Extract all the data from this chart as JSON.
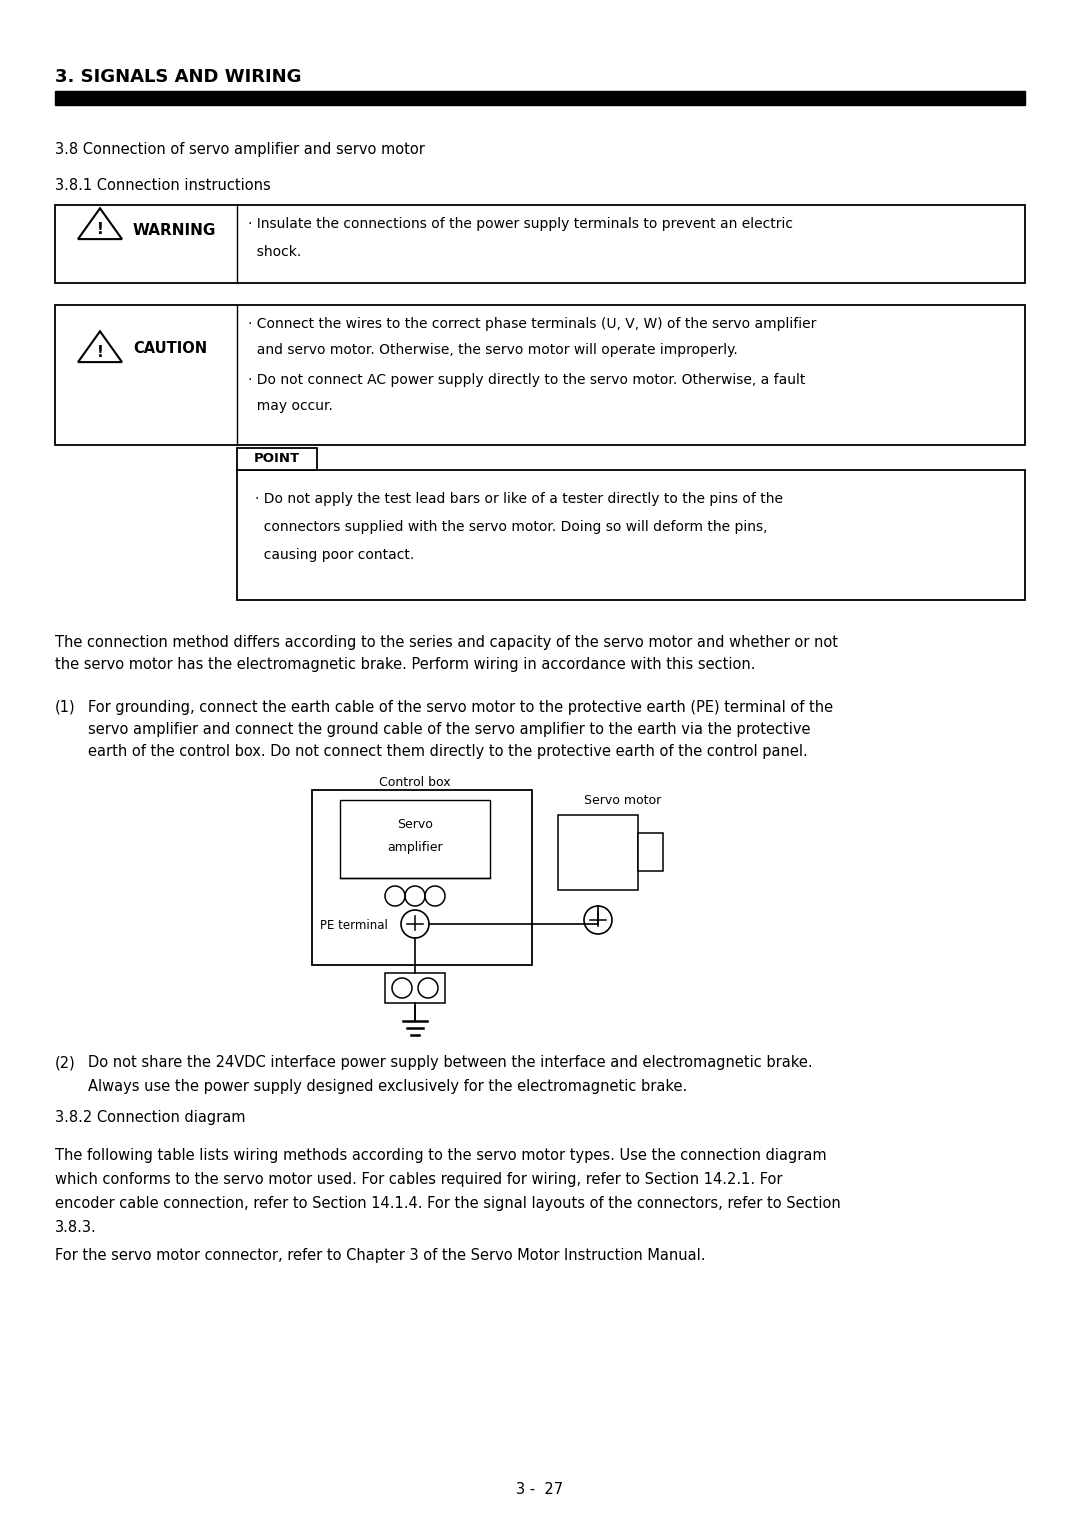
{
  "title": "3. SIGNALS AND WIRING",
  "section_38": "3.8 Connection of servo amplifier and servo motor",
  "section_381": "3.8.1 Connection instructions",
  "warning_text_line1": "· Insulate the connections of the power supply terminals to prevent an electric",
  "warning_text_line2": "  shock.",
  "caution_text_line1": "· Connect the wires to the correct phase terminals (U, V, W) of the servo amplifier",
  "caution_text_line2": "  and servo motor. Otherwise, the servo motor will operate improperly.",
  "caution_text_line3": "· Do not connect AC power supply directly to the servo motor. Otherwise, a fault",
  "caution_text_line4": "  may occur.",
  "point_label": "POINT",
  "point_text_line1": "· Do not apply the test lead bars or like of a tester directly to the pins of the",
  "point_text_line2": "  connectors supplied with the servo motor. Doing so will deform the pins,",
  "point_text_line3": "  causing poor contact.",
  "para1_line1": "The connection method differs according to the series and capacity of the servo motor and whether or not",
  "para1_line2": "the servo motor has the electromagnetic brake. Perform wiring in accordance with this section.",
  "para2_label": "(1)",
  "para2_line1": "For grounding, connect the earth cable of the servo motor to the protective earth (PE) terminal of the",
  "para2_line2": "servo amplifier and connect the ground cable of the servo amplifier to the earth via the protective",
  "para2_line3": "earth of the control box. Do not connect them directly to the protective earth of the control panel.",
  "diag_label_cb": "Control box",
  "diag_label_sa1": "Servo",
  "diag_label_sa2": "amplifier",
  "diag_label_sm": "Servo motor",
  "diag_label_pe": "PE terminal",
  "para3_label": "(2)",
  "para3_line1": "Do not share the 24VDC interface power supply between the interface and electromagnetic brake.",
  "para3_line2": "Always use the power supply designed exclusively for the electromagnetic brake.",
  "section_382": "3.8.2 Connection diagram",
  "para4_line1": "The following table lists wiring methods according to the servo motor types. Use the connection diagram",
  "para4_line2": "which conforms to the servo motor used. For cables required for wiring, refer to Section 14.2.1. For",
  "para4_line3": "encoder cable connection, refer to Section 14.1.4. For the signal layouts of the connectors, refer to Section",
  "para4_line4": "3.8.3.",
  "para4_line5": "For the servo motor connector, refer to Chapter 3 of the Servo Motor Instruction Manual.",
  "page_number": "3 -  27",
  "bg_color": "#ffffff",
  "text_color": "#000000"
}
